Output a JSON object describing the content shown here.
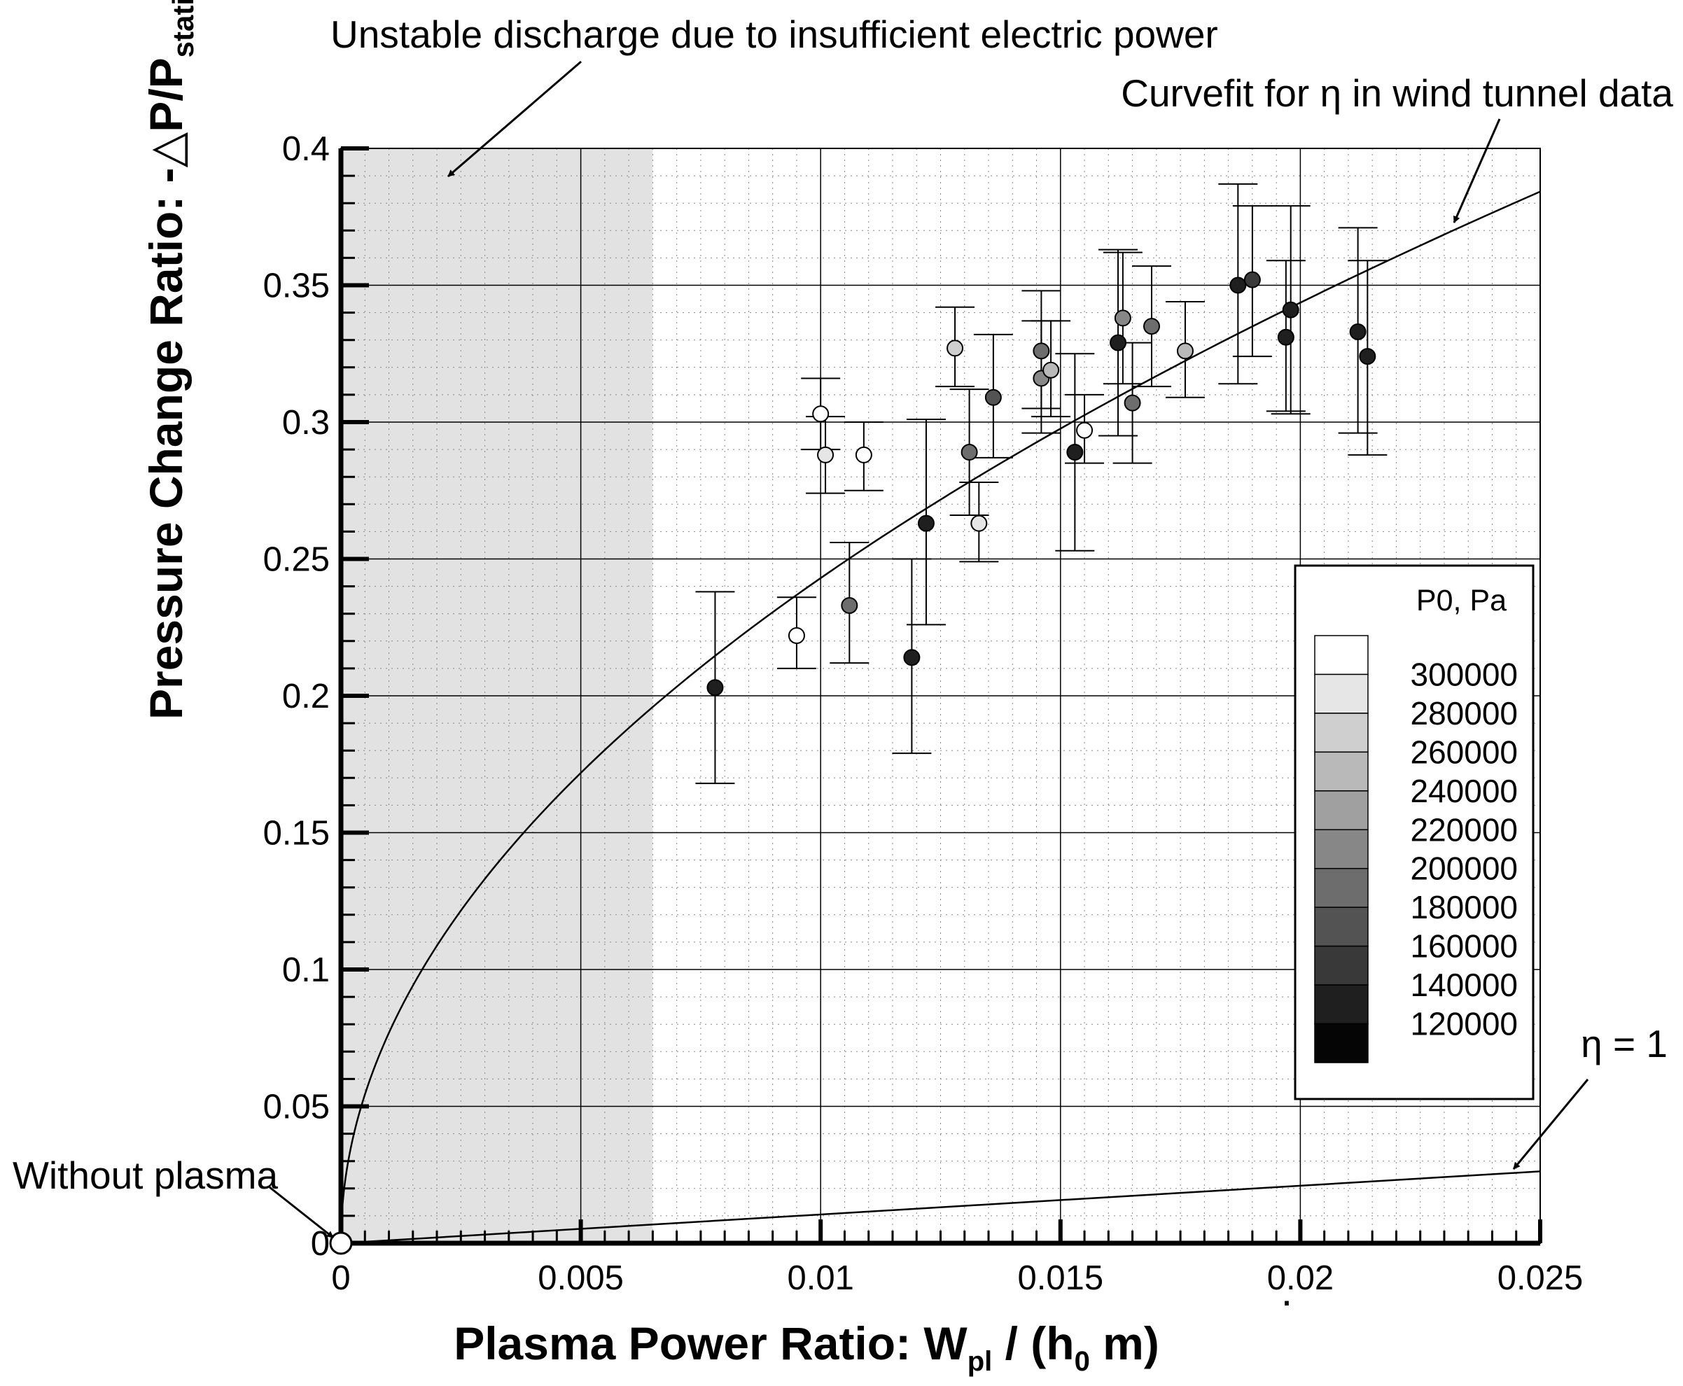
{
  "chart_data": {
    "type": "scatter",
    "xlabel": {
      "main": "Plasma Power Ratio: W",
      "sub": "pl",
      "mid": " / (h",
      "sub2": "0",
      "end": " m)",
      "dot": "·"
    },
    "ylabel": {
      "main": "Pressure Change Ratio: -",
      "delta": "△",
      "mid": "P/P",
      "sub": "static"
    },
    "xlim": [
      0,
      0.025
    ],
    "ylim": [
      0,
      0.4
    ],
    "xticks": [
      {
        "value": 0,
        "label": "0"
      },
      {
        "value": 0.005,
        "label": "0.005"
      },
      {
        "value": 0.01,
        "label": "0.01"
      },
      {
        "value": 0.015,
        "label": "0.015"
      },
      {
        "value": 0.02,
        "label": "0.02"
      },
      {
        "value": 0.025,
        "label": "0.025"
      }
    ],
    "yticks": [
      {
        "value": 0,
        "label": "0"
      },
      {
        "value": 0.05,
        "label": "0.05"
      },
      {
        "value": 0.1,
        "label": "0.1"
      },
      {
        "value": 0.15,
        "label": "0.15"
      },
      {
        "value": 0.2,
        "label": "0.2"
      },
      {
        "value": 0.25,
        "label": "0.25"
      },
      {
        "value": 0.3,
        "label": "0.3"
      },
      {
        "value": 0.35,
        "label": "0.35"
      },
      {
        "value": 0.4,
        "label": "0.4"
      }
    ],
    "minor_grid": true,
    "unstable_region": {
      "x0": 0,
      "x1": 0.0065,
      "color": "#e2e2e2"
    },
    "curvefit": {
      "name": "Curvefit for η in wind tunnel data",
      "a": 2.43,
      "exponent": 0.5
    },
    "eta_one_line": {
      "name": "η = 1",
      "slope": 1.05
    },
    "no_plasma_point": {
      "x": 0,
      "y": 0,
      "name": "Without plasma"
    },
    "series": [
      {
        "x": 0.0078,
        "y": 0.203,
        "lo": 0.168,
        "hi": 0.238,
        "p0": 120000
      },
      {
        "x": 0.0095,
        "y": 0.222,
        "lo": 0.21,
        "hi": 0.236,
        "p0": 300000
      },
      {
        "x": 0.01,
        "y": 0.303,
        "lo": 0.29,
        "hi": 0.316,
        "p0": 300000
      },
      {
        "x": 0.0101,
        "y": 0.288,
        "lo": 0.274,
        "hi": 0.302,
        "p0": 280000
      },
      {
        "x": 0.0106,
        "y": 0.233,
        "lo": 0.212,
        "hi": 0.256,
        "p0": 180000
      },
      {
        "x": 0.0109,
        "y": 0.288,
        "lo": 0.275,
        "hi": 0.3,
        "p0": 300000
      },
      {
        "x": 0.0119,
        "y": 0.214,
        "lo": 0.179,
        "hi": 0.25,
        "p0": 120000
      },
      {
        "x": 0.0122,
        "y": 0.263,
        "lo": 0.226,
        "hi": 0.301,
        "p0": 120000
      },
      {
        "x": 0.0128,
        "y": 0.327,
        "lo": 0.313,
        "hi": 0.342,
        "p0": 260000
      },
      {
        "x": 0.0131,
        "y": 0.289,
        "lo": 0.266,
        "hi": 0.312,
        "p0": 180000
      },
      {
        "x": 0.0133,
        "y": 0.263,
        "lo": 0.249,
        "hi": 0.278,
        "p0": 280000
      },
      {
        "x": 0.0136,
        "y": 0.309,
        "lo": 0.287,
        "hi": 0.332,
        "p0": 160000
      },
      {
        "x": 0.0146,
        "y": 0.326,
        "lo": 0.305,
        "hi": 0.348,
        "p0": 180000
      },
      {
        "x": 0.0146,
        "y": 0.316,
        "lo": 0.296,
        "hi": 0.337,
        "p0": 200000
      },
      {
        "x": 0.0148,
        "y": 0.319,
        "lo": 0.302,
        "hi": 0.337,
        "p0": 240000
      },
      {
        "x": 0.0153,
        "y": 0.289,
        "lo": 0.253,
        "hi": 0.325,
        "p0": 120000
      },
      {
        "x": 0.0155,
        "y": 0.297,
        "lo": 0.285,
        "hi": 0.31,
        "p0": 300000
      },
      {
        "x": 0.0162,
        "y": 0.329,
        "lo": 0.295,
        "hi": 0.363,
        "p0": 120000
      },
      {
        "x": 0.0163,
        "y": 0.338,
        "lo": 0.314,
        "hi": 0.362,
        "p0": 200000
      },
      {
        "x": 0.0165,
        "y": 0.307,
        "lo": 0.285,
        "hi": 0.329,
        "p0": 180000
      },
      {
        "x": 0.0169,
        "y": 0.335,
        "lo": 0.313,
        "hi": 0.357,
        "p0": 180000
      },
      {
        "x": 0.0176,
        "y": 0.326,
        "lo": 0.309,
        "hi": 0.344,
        "p0": 240000
      },
      {
        "x": 0.0187,
        "y": 0.35,
        "lo": 0.314,
        "hi": 0.387,
        "p0": 120000
      },
      {
        "x": 0.019,
        "y": 0.352,
        "lo": 0.324,
        "hi": 0.379,
        "p0": 140000
      },
      {
        "x": 0.0197,
        "y": 0.331,
        "lo": 0.304,
        "hi": 0.359,
        "p0": 120000
      },
      {
        "x": 0.0198,
        "y": 0.341,
        "lo": 0.303,
        "hi": 0.379,
        "p0": 120000
      },
      {
        "x": 0.0212,
        "y": 0.333,
        "lo": 0.296,
        "hi": 0.371,
        "p0": 120000
      },
      {
        "x": 0.0214,
        "y": 0.324,
        "lo": 0.288,
        "hi": 0.359,
        "p0": 120000
      }
    ],
    "legend": {
      "title": "P0, Pa",
      "placement": "right",
      "levels": [
        "300000",
        "280000",
        "260000",
        "240000",
        "220000",
        "200000",
        "180000",
        "160000",
        "140000",
        "120000"
      ],
      "colors": [
        "#ffffff",
        "#e6e6e6",
        "#cfcfcf",
        "#b9b9b9",
        "#a0a0a0",
        "#878787",
        "#6d6d6d",
        "#535353",
        "#393939",
        "#1f1f1f",
        "#050505"
      ]
    },
    "annotations": {
      "unstable": "Unstable discharge due to insufficient electric power",
      "curvefit": "Curvefit for η in wind tunnel data",
      "eta_one": "η = 1",
      "without_plasma": "Without plasma"
    }
  }
}
